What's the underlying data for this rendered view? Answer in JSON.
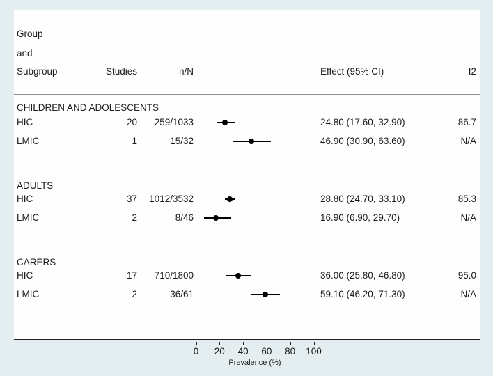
{
  "colors": {
    "page_bg": "#e4eef0",
    "plot_bg": "#fefefe",
    "text": "#1c1c1c",
    "axis_line": "#1f2327",
    "separator_line": "#8a9398",
    "marker": "#000000"
  },
  "header": {
    "group_line1": "Group",
    "group_line2": "and",
    "group_line3": "Subgroup",
    "studies": "Studies",
    "n_N": "n/N",
    "effect": "Effect (95% CI)",
    "i2": "I2"
  },
  "chart_data": {
    "type": "forest",
    "xlabel": "Prevalence (%)",
    "x_ticks": [
      0,
      20,
      40,
      60,
      80,
      100
    ],
    "xlim": [
      0,
      100
    ],
    "grid": false,
    "groups": [
      {
        "title": "CHILDREN AND ADOLESCENTS",
        "rows": [
          {
            "subgroup": "HIC",
            "studies": "20",
            "n_N": "259/1033",
            "effect": 24.8,
            "ci_low": 17.6,
            "ci_high": 32.9,
            "effect_label": "24.80 (17.60, 32.90)",
            "i2": "86.7"
          },
          {
            "subgroup": "LMIC",
            "studies": "1",
            "n_N": "15/32",
            "effect": 46.9,
            "ci_low": 30.9,
            "ci_high": 63.6,
            "effect_label": "46.90 (30.90, 63.60)",
            "i2": "N/A"
          }
        ]
      },
      {
        "title": "ADULTS",
        "rows": [
          {
            "subgroup": "HIC",
            "studies": "37",
            "n_N": "1012/3532",
            "effect": 28.8,
            "ci_low": 24.7,
            "ci_high": 33.1,
            "effect_label": "28.80 (24.70, 33.10)",
            "i2": "85.3"
          },
          {
            "subgroup": "LMIC",
            "studies": "2",
            "n_N": "8/46",
            "effect": 16.9,
            "ci_low": 6.9,
            "ci_high": 29.7,
            "effect_label": "16.90 (6.90, 29.70)",
            "i2": "N/A"
          }
        ]
      },
      {
        "title": "CARERS",
        "rows": [
          {
            "subgroup": "HIC",
            "studies": "17",
            "n_N": "710/1800",
            "effect": 36.0,
            "ci_low": 25.8,
            "ci_high": 46.8,
            "effect_label": "36.00 (25.80, 46.80)",
            "i2": "95.0"
          },
          {
            "subgroup": "LMIC",
            "studies": "2",
            "n_N": "36/61",
            "effect": 59.1,
            "ci_low": 46.2,
            "ci_high": 71.3,
            "effect_label": "59.10 (46.20, 71.30)",
            "i2": "N/A"
          }
        ]
      }
    ]
  }
}
